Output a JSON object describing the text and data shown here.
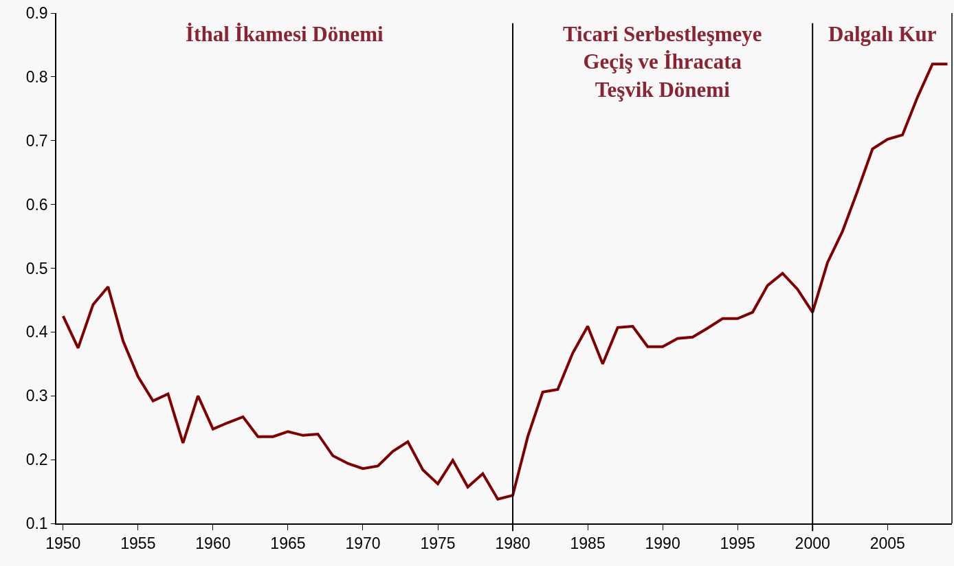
{
  "chart_data": {
    "type": "line",
    "x": [
      1950,
      1951,
      1952,
      1953,
      1954,
      1955,
      1956,
      1957,
      1958,
      1959,
      1960,
      1961,
      1962,
      1963,
      1964,
      1965,
      1966,
      1967,
      1968,
      1969,
      1970,
      1971,
      1972,
      1973,
      1974,
      1975,
      1976,
      1977,
      1978,
      1979,
      1980,
      1981,
      1982,
      1983,
      1984,
      1985,
      1986,
      1987,
      1988,
      1989,
      1990,
      1991,
      1992,
      1993,
      1994,
      1995,
      1996,
      1997,
      1998,
      1999,
      2000,
      2001,
      2002,
      2003,
      2004,
      2005,
      2006,
      2007,
      2008,
      2009
    ],
    "series": [
      {
        "color": "#800000",
        "values": [
          0.425,
          0.375,
          0.443,
          0.471,
          0.386,
          0.33,
          0.292,
          0.303,
          0.226,
          0.3,
          0.248,
          0.258,
          0.267,
          0.236,
          0.236,
          0.244,
          0.238,
          0.24,
          0.206,
          0.194,
          0.186,
          0.19,
          0.213,
          0.228,
          0.184,
          0.162,
          0.199,
          0.157,
          0.178,
          0.138,
          0.144,
          0.236,
          0.306,
          0.31,
          0.367,
          0.409,
          0.35,
          0.407,
          0.409,
          0.377,
          0.377,
          0.39,
          0.392,
          0.406,
          0.421,
          0.421,
          0.431,
          0.473,
          0.492,
          0.467,
          0.431,
          0.509,
          0.558,
          0.621,
          0.687,
          0.702,
          0.709,
          0.768,
          0.82,
          0.82
        ]
      }
    ],
    "xlim": [
      1949.55,
      2009.3
    ],
    "xticks": [
      1950,
      1955,
      1960,
      1965,
      1970,
      1975,
      1980,
      1985,
      1990,
      1995,
      2000,
      2005
    ],
    "ylim": [
      0.1,
      0.9
    ],
    "yticks": [
      0.1,
      0.2,
      0.3,
      0.4,
      0.5,
      0.6,
      0.7,
      0.8,
      0.9
    ],
    "ref_lines": [
      {
        "axis": "x",
        "value": 1980,
        "color": "#000000"
      },
      {
        "axis": "x",
        "value": 2000,
        "color": "#000000"
      }
    ],
    "annotations": [
      "İthal İkamesi Dönemi",
      "Ticari Serbestleşmeye\nGeçiş ve İhracata\nTeşvik Dönemi",
      "Dalgalı Kur"
    ],
    "grid": false,
    "marker": "none",
    "line_style": "solid"
  }
}
